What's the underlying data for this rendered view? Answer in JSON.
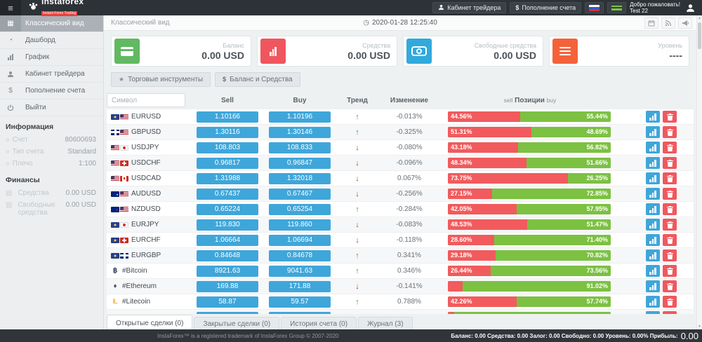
{
  "topbar": {
    "logo": "instaforex",
    "logo_tagline": "Instant Forex Trading",
    "trader_cabinet": "Кабинет трейдера",
    "deposit": "Пополнение счета",
    "welcome_line1": "Добро пожаловать!",
    "welcome_line2": "Test 22"
  },
  "sidebar": {
    "items": [
      {
        "id": "classic-view",
        "label": "Классический вид",
        "icon": "table-icon",
        "active": true
      },
      {
        "id": "dashboard",
        "label": "Дашборд",
        "icon": "dashboard-icon",
        "active": false
      },
      {
        "id": "chart",
        "label": "График",
        "icon": "chart-icon",
        "active": false
      },
      {
        "id": "trader-cabinet",
        "label": "Кабинет трейдера",
        "icon": "user-icon",
        "active": false
      },
      {
        "id": "deposit",
        "label": "Пополнение счета",
        "icon": "dollar-icon",
        "active": false
      },
      {
        "id": "logout",
        "label": "Выйти",
        "icon": "power-icon",
        "active": false
      }
    ],
    "info_title": "Информация",
    "info_rows": [
      {
        "label": "Счет",
        "value": "80600693"
      },
      {
        "label": "Тип счета",
        "value": "Standard"
      },
      {
        "label": "Плечо",
        "value": "1:100"
      }
    ],
    "finance_title": "Финансы",
    "finance_rows": [
      {
        "label": "Средства",
        "value": "0.00 USD",
        "icon": "equity-icon"
      },
      {
        "label": "Свободные средства",
        "value": "0.00 USD",
        "icon": "free-margin-icon"
      }
    ]
  },
  "header": {
    "title": "Классический вид",
    "timestamp": "2020-01-28 12:25:40",
    "icons": [
      "calendar-icon",
      "rss-icon",
      "megaphone-icon"
    ]
  },
  "cards": [
    {
      "id": "balance",
      "label": "Баланс",
      "value": "0.00 USD",
      "icon": "credit-card-icon",
      "color": "#61b961"
    },
    {
      "id": "equity",
      "label": "Средства",
      "value": "0.00 USD",
      "icon": "bar-chart-icon",
      "color": "#f0565d"
    },
    {
      "id": "free-margin",
      "label": "Свободные средства",
      "value": "0.00 USD",
      "icon": "eye-icon",
      "color": "#31a9dd"
    },
    {
      "id": "level",
      "label": "Уровень",
      "value": "----",
      "icon": "list-icon",
      "color": "#f4623a"
    }
  ],
  "toolbar": {
    "instruments": "Торговые инструменты",
    "balance": "Баланс и Средства"
  },
  "table": {
    "filter_placeholder": "Символ",
    "headers": {
      "sell": "Sell",
      "buy": "Buy",
      "trend": "Тренд",
      "change": "Изменение",
      "positions": {
        "left": "sell",
        "center": "Позиции",
        "right": "buy"
      }
    },
    "rows": [
      {
        "name": "EURUSD",
        "flags": [
          "eu",
          "us"
        ],
        "sell": "1.10166",
        "buy": "1.10196",
        "trend": "up",
        "change": "-0.013%",
        "sell_pct": "44.56%",
        "buy_pct": "55.44%",
        "sell_width": 44.56
      },
      {
        "name": "GBPUSD",
        "flags": [
          "gb",
          "us"
        ],
        "sell": "1.30116",
        "buy": "1.30146",
        "trend": "up",
        "change": "-0.325%",
        "sell_pct": "51.31%",
        "buy_pct": "48.69%",
        "sell_width": 51.31
      },
      {
        "name": "USDJPY",
        "flags": [
          "us",
          "jp"
        ],
        "sell": "108.803",
        "buy": "108.833",
        "trend": "down",
        "change": "-0.080%",
        "sell_pct": "43.18%",
        "buy_pct": "56.82%",
        "sell_width": 43.18
      },
      {
        "name": "USDCHF",
        "flags": [
          "us",
          "ch"
        ],
        "sell": "0.96817",
        "buy": "0.96847",
        "trend": "down",
        "change": "-0.096%",
        "sell_pct": "48.34%",
        "buy_pct": "51.66%",
        "sell_width": 48.34
      },
      {
        "name": "USDCAD",
        "flags": [
          "us",
          "ca"
        ],
        "sell": "1.31988",
        "buy": "1.32018",
        "trend": "down",
        "change": "0.067%",
        "sell_pct": "73.75%",
        "buy_pct": "26.25%",
        "sell_width": 73.75
      },
      {
        "name": "AUDUSD",
        "flags": [
          "au",
          "us"
        ],
        "sell": "0.67437",
        "buy": "0.67467",
        "trend": "down",
        "change": "-0.256%",
        "sell_pct": "27.15%",
        "buy_pct": "72.85%",
        "sell_width": 27.15
      },
      {
        "name": "NZDUSD",
        "flags": [
          "nz",
          "us"
        ],
        "sell": "0.65224",
        "buy": "0.65254",
        "trend": "up",
        "change": "-0.284%",
        "sell_pct": "42.05%",
        "buy_pct": "57.95%",
        "sell_width": 42.05
      },
      {
        "name": "EURJPY",
        "flags": [
          "eu",
          "jp"
        ],
        "sell": "119.830",
        "buy": "119.860",
        "trend": "down",
        "change": "-0.083%",
        "sell_pct": "48.53%",
        "buy_pct": "51.47%",
        "sell_width": 48.53
      },
      {
        "name": "EURCHF",
        "flags": [
          "eu",
          "ch"
        ],
        "sell": "1.06664",
        "buy": "1.06694",
        "trend": "down",
        "change": "-0.118%",
        "sell_pct": "28.60%",
        "buy_pct": "71.40%",
        "sell_width": 28.6
      },
      {
        "name": "EURGBP",
        "flags": [
          "eu",
          "gb"
        ],
        "sell": "0.84648",
        "buy": "0.84678",
        "trend": "up",
        "change": "0.341%",
        "sell_pct": "29.18%",
        "buy_pct": "70.82%",
        "sell_width": 29.18
      },
      {
        "name": "#Bitcoin",
        "crypto": {
          "char": "฿",
          "color": "#34495e"
        },
        "sell": "8921.63",
        "buy": "9041.63",
        "trend": "up",
        "change": "0.346%",
        "sell_pct": "26.44%",
        "buy_pct": "73.56%",
        "sell_width": 26.44
      },
      {
        "name": "#Ethereum",
        "crypto": {
          "char": "♦",
          "color": "#555e64"
        },
        "sell": "169.88",
        "buy": "171.88",
        "trend": "down",
        "change": "-0.141%",
        "sell_pct": "",
        "buy_pct": "91.02%",
        "sell_width": 8.98
      },
      {
        "name": "#Litecoin",
        "crypto": {
          "char": "Ł",
          "color": "#f2a93b"
        },
        "sell": "58.87",
        "buy": "59.57",
        "trend": "up",
        "change": "0.788%",
        "sell_pct": "42.26%",
        "buy_pct": "57.74%",
        "sell_width": 42.26
      },
      {
        "name": "",
        "flags": [],
        "sell": "",
        "buy": "",
        "trend": "",
        "change": "",
        "sell_pct": "",
        "buy_pct": "",
        "sell_width": 4,
        "partial": true
      }
    ]
  },
  "tabs": [
    {
      "label": "Открытые сделки (0)",
      "active": true
    },
    {
      "label": "Закрытые сделки (0)",
      "active": false
    },
    {
      "label": "История счета (0)",
      "active": false
    },
    {
      "label": "Журнал (3)",
      "active": false
    }
  ],
  "footer": {
    "trademark": "InstaForex™ is a registered trademark of InstaForex Group © 2007-2020",
    "stats": "Баланс: 0.00 Средства: 0.00 Залог: 0.00 Свободно: 0.00 Уровень: 0.00% Прибыль:",
    "profit": "0.00"
  }
}
